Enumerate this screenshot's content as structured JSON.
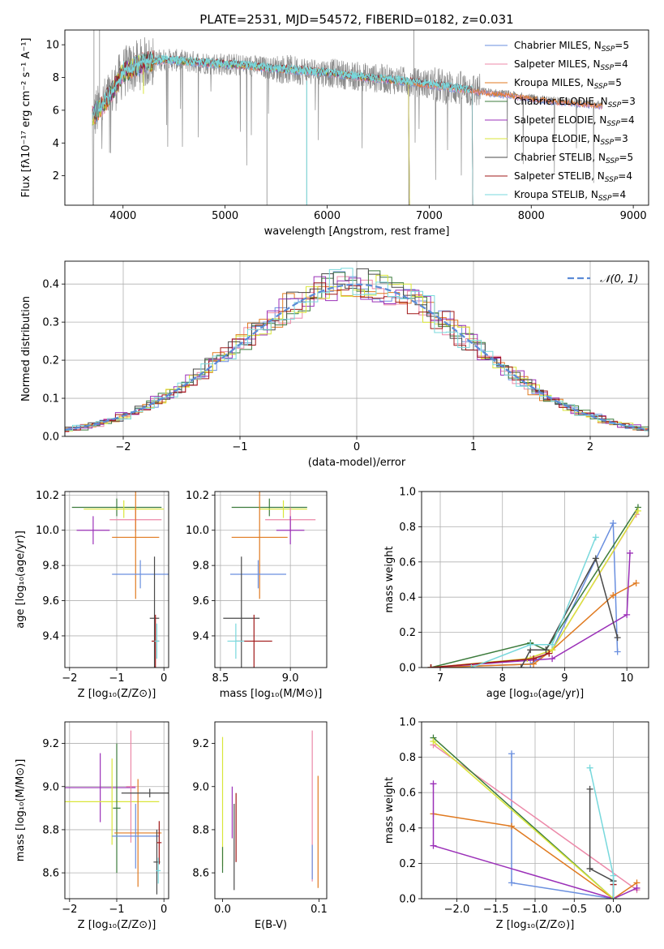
{
  "figure_title": "PLATE=2531, MJD=54572, FIBERID=0182, z=0.031",
  "colors": {
    "chabrier_miles": "#6a8fdf",
    "salpeter_miles": "#ec88a8",
    "kroupa_miles": "#e07a20",
    "chabrier_elodie": "#3c7b3c",
    "salpeter_elodie": "#9b30b8",
    "kroupa_elodie": "#d9e63a",
    "chabrier_stelib": "#4a4a4a",
    "salpeter_stelib": "#a01818",
    "kroupa_stelib": "#78d8dc",
    "gaussian": "#5b8bd6",
    "grid": "#b0b0b0",
    "flux_data": "#8a8a8a"
  },
  "chart_data": [
    {
      "id": "spectrum",
      "type": "line",
      "xlabel": "wavelength [Angstrom, rest frame]",
      "ylabel": "Flux [fλ10⁻¹⁷ erg cm⁻² s⁻¹ A⁻¹]",
      "xlim": [
        3430,
        9150
      ],
      "ylim": [
        0.2,
        10.9
      ],
      "xticks": [
        4000,
        5000,
        6000,
        7000,
        8000,
        9000
      ],
      "yticks": [
        2,
        4,
        6,
        8,
        10
      ],
      "grid": false,
      "legend_position": "top-right",
      "legend": [
        {
          "label": "Chabrier MILES, N",
          "sub": "SSP",
          "suffix": "=5",
          "color_key": "chabrier_miles"
        },
        {
          "label": "Salpeter MILES, N",
          "sub": "SSP",
          "suffix": "=4",
          "color_key": "salpeter_miles"
        },
        {
          "label": "Kroupa MILES, N",
          "sub": "SSP",
          "suffix": "=5",
          "color_key": "kroupa_miles"
        },
        {
          "label": "Chabrier ELODIE, N",
          "sub": "SSP",
          "suffix": "=3",
          "color_key": "chabrier_elodie"
        },
        {
          "label": "Salpeter ELODIE, N",
          "sub": "SSP",
          "suffix": "=4",
          "color_key": "salpeter_elodie"
        },
        {
          "label": "Kroupa ELODIE, N",
          "sub": "SSP",
          "suffix": "=3",
          "color_key": "kroupa_elodie"
        },
        {
          "label": "Chabrier STELIB, N",
          "sub": "SSP",
          "suffix": "=5",
          "color_key": "chabrier_stelib"
        },
        {
          "label": "Salpeter STELIB, N",
          "sub": "SSP",
          "suffix": "=4",
          "color_key": "salpeter_stelib"
        },
        {
          "label": "Kroupa STELIB, N",
          "sub": "SSP",
          "suffix": "=4",
          "color_key": "kroupa_stelib"
        }
      ],
      "continuum": {
        "x": [
          3700,
          3800,
          3900,
          4000,
          4200,
          4400,
          4600,
          4800,
          5000,
          5200,
          5400,
          5600,
          5800,
          6000,
          6200,
          6400,
          6600,
          6800,
          7000,
          7200,
          7400,
          7600,
          7800,
          8000,
          8200,
          8400,
          8600,
          8800
        ],
        "y": [
          5.6,
          6.3,
          7.2,
          8.3,
          8.9,
          9.1,
          9.0,
          8.9,
          8.8,
          8.75,
          8.6,
          8.5,
          8.4,
          8.3,
          8.15,
          8.0,
          7.9,
          7.75,
          7.6,
          7.4,
          7.25,
          7.1,
          6.95,
          6.75,
          6.6,
          6.5,
          6.35,
          6.3
        ]
      },
      "data_range": [
        3700,
        8700
      ],
      "model_cutoffs": {
        "stelib": 7420,
        "elodie": 6800
      }
    },
    {
      "id": "residuals",
      "type": "histogram",
      "xlabel": "(data-model)/error",
      "ylabel": "Normed distribution",
      "xlim": [
        -2.5,
        2.5
      ],
      "ylim": [
        0,
        0.46
      ],
      "xticks": [
        -2,
        -1,
        0,
        1,
        2
      ],
      "yticks": [
        0.0,
        0.1,
        0.2,
        0.3,
        0.4
      ],
      "grid": true,
      "legend_position": "top-right",
      "legend": [
        {
          "label": "𝒩(0, 1)",
          "color_key": "gaussian"
        }
      ],
      "bin_width": 0.1
    },
    {
      "id": "age_vs_Z",
      "type": "errorbar",
      "xlabel": "Z [log₁₀(Z/Z⊙)]",
      "ylabel": "age  [log₁₀(age/yr)]",
      "xlim": [
        -2.1,
        0.1
      ],
      "ylim": [
        9.22,
        10.22
      ],
      "xticks": [
        -2,
        -1,
        0
      ],
      "yticks": [
        9.4,
        9.6,
        9.8,
        10.0,
        10.2
      ],
      "grid": true,
      "points": [
        {
          "color_key": "chabrier_elodie",
          "x": -1.0,
          "xerr": 0.95,
          "y": 10.13,
          "yerr": 0.05
        },
        {
          "color_key": "kroupa_elodie",
          "x": -0.85,
          "xerr": 0.85,
          "y": 10.12,
          "yerr": 0.05
        },
        {
          "color_key": "salpeter_miles",
          "x": -0.6,
          "xerr": 0.55,
          "y": 10.06,
          "yerr": 0.07
        },
        {
          "color_key": "salpeter_elodie",
          "x": -1.5,
          "xerr": 0.35,
          "y": 10.0,
          "yerr": 0.08
        },
        {
          "color_key": "kroupa_miles",
          "x": -0.6,
          "xerr": 0.5,
          "y": 9.96,
          "yerr": 0.35
        },
        {
          "color_key": "chabrier_miles",
          "x": -0.5,
          "xerr": 0.6,
          "y": 9.75,
          "yerr": 0.08
        },
        {
          "color_key": "chabrier_stelib",
          "x": -0.2,
          "xerr": 0.1,
          "y": 9.5,
          "yerr": 0.35
        },
        {
          "color_key": "salpeter_stelib",
          "x": -0.18,
          "xerr": 0.08,
          "y": 9.37,
          "yerr": 0.15
        },
        {
          "color_key": "kroupa_stelib",
          "x": -0.15,
          "xerr": 0.05,
          "y": 9.37,
          "yerr": 0.1
        }
      ]
    },
    {
      "id": "age_vs_mass",
      "type": "errorbar",
      "xlabel": "mass [log₁₀(M/M⊙)]",
      "ylabel": "",
      "xlim": [
        8.46,
        9.26
      ],
      "ylim": [
        9.22,
        10.22
      ],
      "xticks": [
        8.5,
        9.0
      ],
      "yticks": [
        9.4,
        9.6,
        9.8,
        10.0,
        10.2
      ],
      "grid": true,
      "points": [
        {
          "color_key": "chabrier_elodie",
          "x": 8.85,
          "xerr": 0.27,
          "y": 10.13,
          "yerr": 0.05
        },
        {
          "color_key": "kroupa_elodie",
          "x": 8.95,
          "xerr": 0.17,
          "y": 10.12,
          "yerr": 0.05
        },
        {
          "color_key": "salpeter_miles",
          "x": 9.0,
          "xerr": 0.18,
          "y": 10.06,
          "yerr": 0.07
        },
        {
          "color_key": "salpeter_elodie",
          "x": 9.0,
          "xerr": 0.1,
          "y": 10.0,
          "yerr": 0.08
        },
        {
          "color_key": "kroupa_miles",
          "x": 8.78,
          "xerr": 0.2,
          "y": 9.96,
          "yerr": 0.35
        },
        {
          "color_key": "chabrier_miles",
          "x": 8.77,
          "xerr": 0.2,
          "y": 9.75,
          "yerr": 0.08
        },
        {
          "color_key": "chabrier_stelib",
          "x": 8.65,
          "xerr": 0.13,
          "y": 9.5,
          "yerr": 0.35
        },
        {
          "color_key": "salpeter_stelib",
          "x": 8.74,
          "xerr": 0.13,
          "y": 9.37,
          "yerr": 0.15
        },
        {
          "color_key": "kroupa_stelib",
          "x": 8.61,
          "xerr": 0.06,
          "y": 9.37,
          "yerr": 0.1
        }
      ]
    },
    {
      "id": "weight_vs_age",
      "type": "line",
      "xlabel": "age  [log₁₀(age/yr)]",
      "ylabel": "mass weight",
      "xlim": [
        6.7,
        10.35
      ],
      "ylim": [
        0,
        1.0
      ],
      "xticks": [
        7,
        8,
        9,
        10
      ],
      "yticks": [
        0.0,
        0.2,
        0.4,
        0.6,
        0.8,
        1.0
      ],
      "grid": true,
      "series": [
        {
          "color_key": "chabrier_miles",
          "x": [
            6.85,
            8.45,
            8.8,
            9.78,
            9.85
          ],
          "y": [
            0.0,
            0.02,
            0.1,
            0.82,
            0.09
          ]
        },
        {
          "color_key": "salpeter_miles",
          "x": [
            6.85,
            8.45,
            8.8,
            10.15
          ],
          "y": [
            0.0,
            0.05,
            0.1,
            0.87
          ]
        },
        {
          "color_key": "kroupa_miles",
          "x": [
            6.85,
            8.5,
            8.8,
            9.78,
            10.15
          ],
          "y": [
            0.0,
            0.02,
            0.1,
            0.41,
            0.48
          ]
        },
        {
          "color_key": "chabrier_elodie",
          "x": [
            6.85,
            8.45,
            8.7,
            10.18
          ],
          "y": [
            0.0,
            0.14,
            0.1,
            0.91
          ]
        },
        {
          "color_key": "salpeter_elodie",
          "x": [
            6.85,
            8.8,
            10.0,
            10.05
          ],
          "y": [
            0.0,
            0.05,
            0.3,
            0.65
          ]
        },
        {
          "color_key": "kroupa_elodie",
          "x": [
            6.85,
            8.4,
            8.8,
            10.18
          ],
          "y": [
            0.0,
            0.05,
            0.1,
            0.89
          ]
        },
        {
          "color_key": "chabrier_stelib",
          "x": [
            8.3,
            8.45,
            8.7,
            9.5,
            9.85
          ],
          "y": [
            0.0,
            0.1,
            0.1,
            0.62,
            0.17
          ]
        },
        {
          "color_key": "salpeter_stelib",
          "x": [
            6.85,
            8.5,
            8.75
          ],
          "y": [
            0.0,
            0.05,
            0.08
          ]
        },
        {
          "color_key": "kroupa_stelib",
          "x": [
            7.5,
            8.45,
            8.8,
            9.5
          ],
          "y": [
            0.0,
            0.13,
            0.13,
            0.74
          ]
        }
      ]
    },
    {
      "id": "mass_vs_Z",
      "type": "errorbar",
      "xlabel": "Z [log₁₀(Z/Z⊙)]",
      "ylabel": "mass [log₁₀(M/M⊙)]",
      "xlim": [
        -2.1,
        0.1
      ],
      "ylim": [
        8.48,
        9.3
      ],
      "xticks": [
        -2,
        -1,
        0
      ],
      "yticks": [
        8.6,
        8.8,
        9.0,
        9.2
      ],
      "grid": true,
      "points": [
        {
          "color_key": "salpeter_elodie",
          "x": -1.35,
          "xerr": 0.75,
          "y": 8.995,
          "yerr": 0.16
        },
        {
          "color_key": "kroupa_elodie",
          "x": -1.1,
          "xerr": 1.0,
          "y": 8.93,
          "yerr": 0.2
        },
        {
          "color_key": "chabrier_elodie",
          "x": -1.0,
          "xerr": 0.08,
          "y": 8.9,
          "yerr": 0.3
        },
        {
          "color_key": "salpeter_miles",
          "x": -0.7,
          "xerr": 0.1,
          "y": 9.0,
          "yerr": 0.26
        },
        {
          "color_key": "kroupa_miles",
          "x": -0.55,
          "xerr": 0.5,
          "y": 8.785,
          "yerr": 0.25
        },
        {
          "color_key": "chabrier_miles",
          "x": -0.6,
          "xerr": 0.5,
          "y": 8.77,
          "yerr": 0.15
        },
        {
          "color_key": "chabrier_stelib",
          "x": -0.3,
          "xerr": 0.6,
          "y": 8.97,
          "yerr": 0.02
        },
        {
          "color_key": "chabrier_stelib",
          "x": -0.15,
          "xerr": 0.07,
          "y": 8.65,
          "yerr": 0.15
        },
        {
          "color_key": "salpeter_stelib",
          "x": -0.1,
          "xerr": 0.05,
          "y": 8.74,
          "yerr": 0.1
        },
        {
          "color_key": "kroupa_stelib",
          "x": -0.12,
          "xerr": 0.05,
          "y": 8.61,
          "yerr": 0.06
        }
      ]
    },
    {
      "id": "mass_vs_EBV",
      "type": "errorbar",
      "xlabel": "E(B-V)",
      "ylabel": "",
      "xlim": [
        -0.008,
        0.108
      ],
      "ylim": [
        8.48,
        9.3
      ],
      "xticks": [
        0.0,
        0.1
      ],
      "yticks": [
        8.6,
        8.8,
        9.0,
        9.2
      ],
      "grid": false,
      "points": [
        {
          "color_key": "kroupa_elodie",
          "x": 0.0,
          "xerr": 0,
          "y": 8.93,
          "yerr": 0.3
        },
        {
          "color_key": "chabrier_elodie",
          "x": 0.0,
          "xerr": 0,
          "y": 8.66,
          "yerr": 0.06
        },
        {
          "color_key": "salpeter_elodie",
          "x": 0.01,
          "xerr": 0,
          "y": 8.88,
          "yerr": 0.12
        },
        {
          "color_key": "chabrier_stelib",
          "x": 0.012,
          "xerr": 0,
          "y": 8.72,
          "yerr": 0.2
        },
        {
          "color_key": "salpeter_stelib",
          "x": 0.014,
          "xerr": 0,
          "y": 8.81,
          "yerr": 0.16
        },
        {
          "color_key": "salpeter_miles",
          "x": 0.093,
          "xerr": 0,
          "y": 8.91,
          "yerr": 0.35
        },
        {
          "color_key": "chabrier_miles",
          "x": 0.093,
          "xerr": 0,
          "y": 8.65,
          "yerr": 0.08
        },
        {
          "color_key": "kroupa_miles",
          "x": 0.099,
          "xerr": 0,
          "y": 8.79,
          "yerr": 0.26
        }
      ]
    },
    {
      "id": "weight_vs_Z",
      "type": "line",
      "xlabel": "Z [log₁₀(Z/Z⊙)]",
      "ylabel": "mass weight",
      "xlim": [
        -2.45,
        0.45
      ],
      "ylim": [
        0,
        1.0
      ],
      "xticks": [
        -2.0,
        -1.5,
        -1.0,
        -0.5,
        0.0
      ],
      "yticks": [
        0.0,
        0.2,
        0.4,
        0.6,
        0.8,
        1.0
      ],
      "grid": true,
      "series": [
        {
          "color_key": "chabrier_miles",
          "x": [
            -1.3,
            -1.3,
            0.0
          ],
          "y": [
            0.82,
            0.09,
            0.0
          ]
        },
        {
          "color_key": "salpeter_miles",
          "x": [
            -2.3,
            0.3
          ],
          "y": [
            0.87,
            0.05
          ]
        },
        {
          "color_key": "kroupa_miles",
          "x": [
            -2.3,
            -1.3,
            0.0,
            0.3
          ],
          "y": [
            0.48,
            0.41,
            0.0,
            0.09
          ]
        },
        {
          "color_key": "chabrier_elodie",
          "x": [
            -2.3,
            0.0
          ],
          "y": [
            0.91,
            0.0
          ]
        },
        {
          "color_key": "salpeter_elodie",
          "x": [
            -2.3,
            -2.3,
            0.0,
            0.3
          ],
          "y": [
            0.65,
            0.3,
            0.0,
            0.06
          ]
        },
        {
          "color_key": "kroupa_elodie",
          "x": [
            -2.3,
            0.0
          ],
          "y": [
            0.89,
            0.0
          ]
        },
        {
          "color_key": "chabrier_stelib",
          "x": [
            -0.3,
            -0.3,
            0.0,
            0.0
          ],
          "y": [
            0.62,
            0.17,
            0.1,
            0.0
          ]
        },
        {
          "color_key": "salpeter_stelib",
          "x": [
            0.0,
            0.0
          ],
          "y": [
            0.08,
            0.0
          ]
        },
        {
          "color_key": "kroupa_stelib",
          "x": [
            -0.3,
            0.0,
            0.0
          ],
          "y": [
            0.74,
            0.13,
            0.0
          ]
        }
      ]
    }
  ]
}
